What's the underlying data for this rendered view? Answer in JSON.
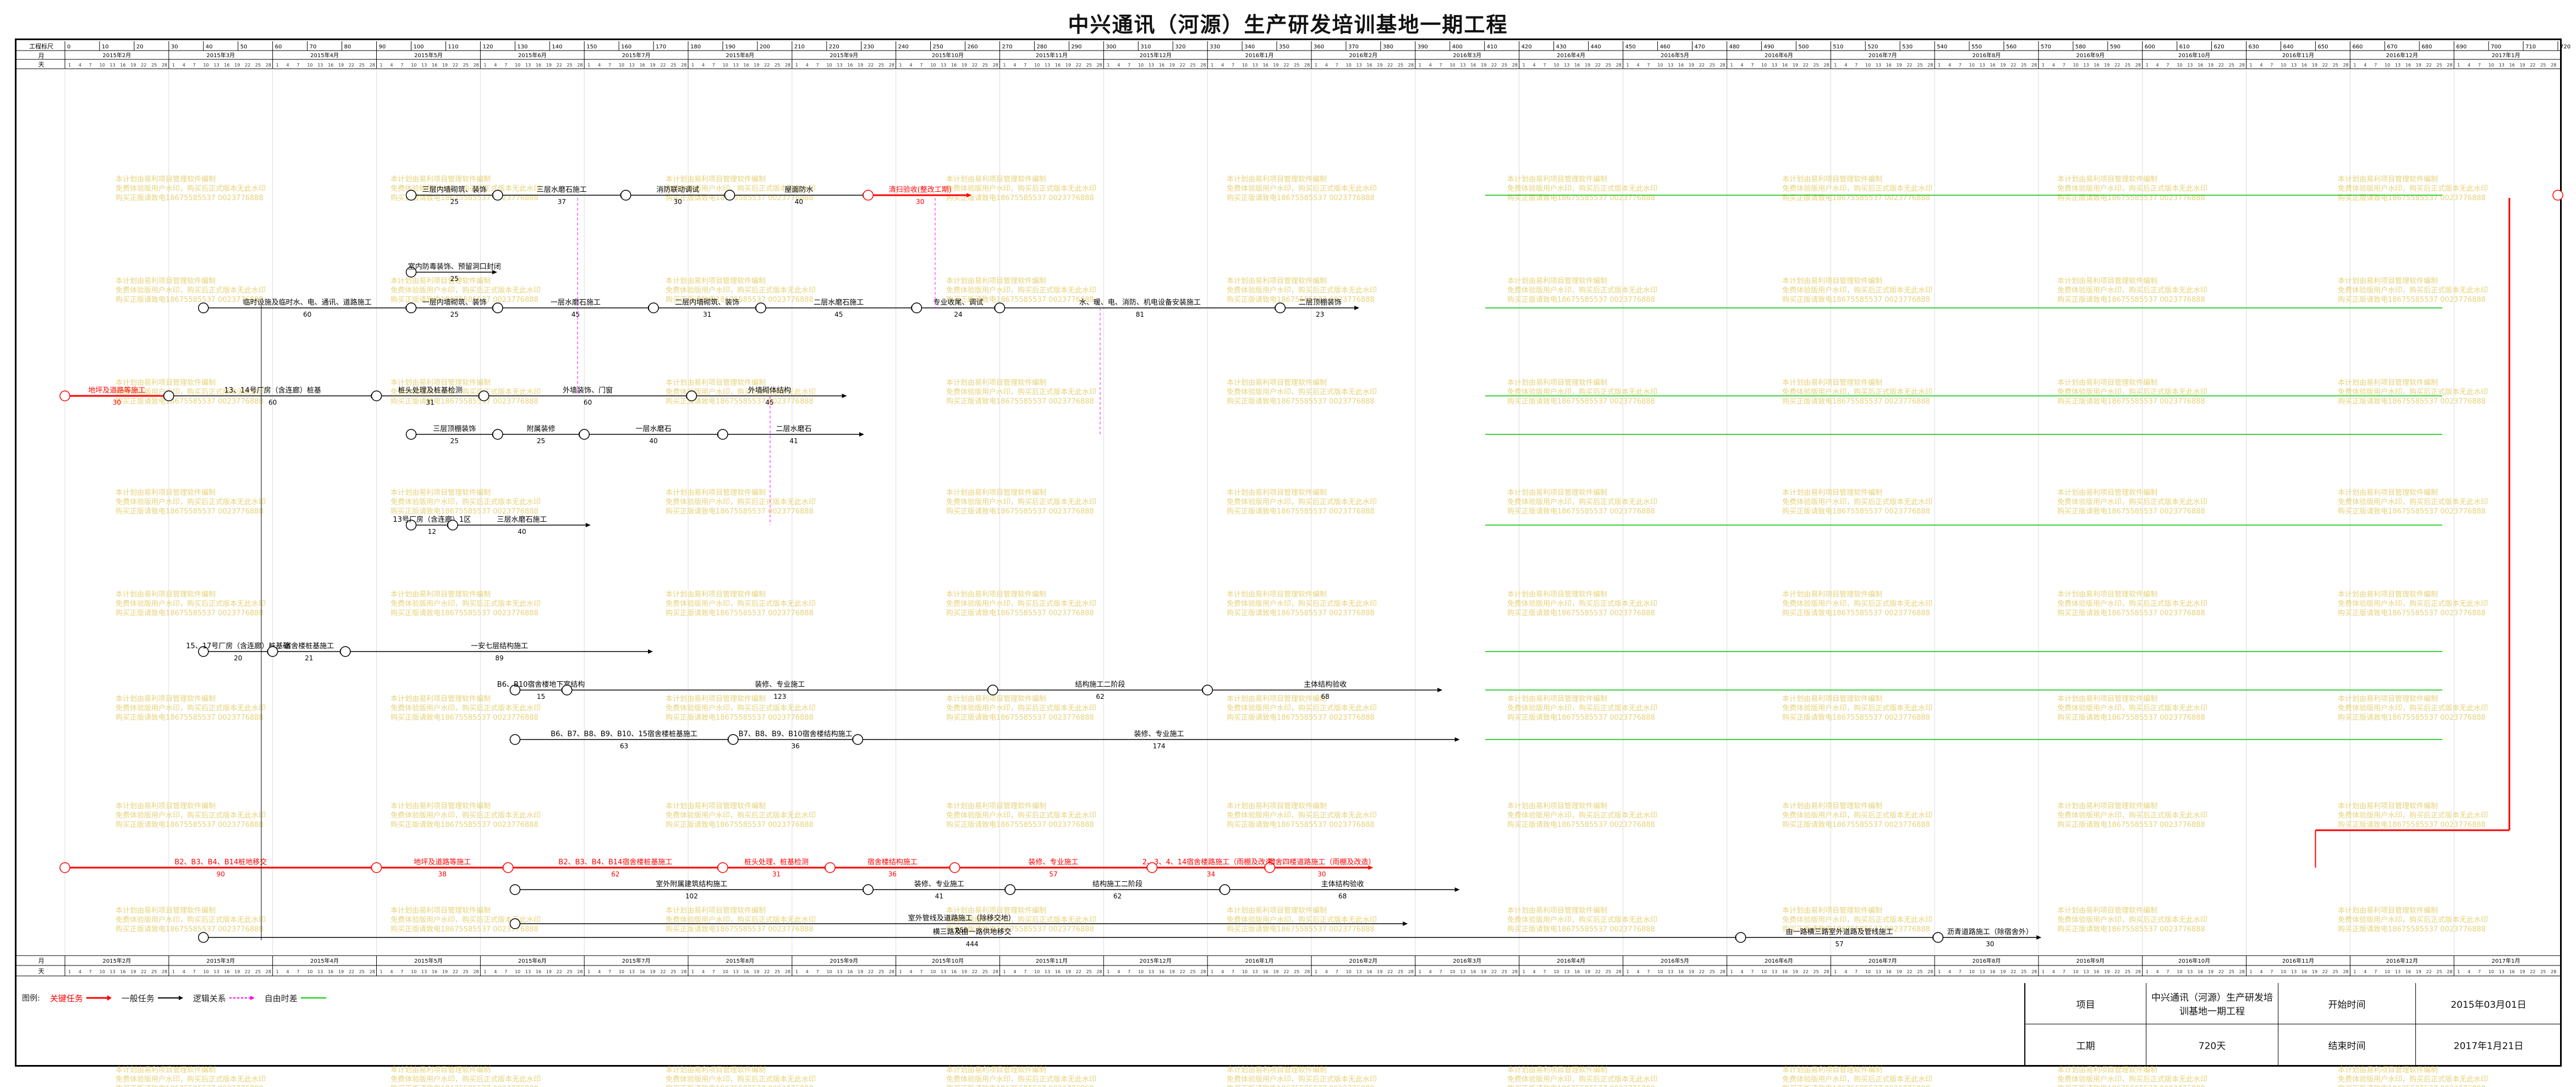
{
  "title": "中兴通讯（河源）生产研发培训基地一期工程",
  "header": {
    "row_labels": [
      "工程标尺",
      "月",
      "天"
    ],
    "bottom_row_labels": [
      "月",
      "天"
    ],
    "months": [
      "2015年2月",
      "2015年3月",
      "2015年4月",
      "2015年5月",
      "2015年6月",
      "2015年7月",
      "2015年8月",
      "2015年9月",
      "2015年10月",
      "2015年11月",
      "2015年12月",
      "2016年1月",
      "2016年2月",
      "2016年3月",
      "2016年4月",
      "2016年5月",
      "2016年6月",
      "2016年7月",
      "2016年8月",
      "2016年9月",
      "2016年10月",
      "2016年11月",
      "2016年12月",
      "2017年1月"
    ],
    "scale_ticks": [
      "0",
      "10",
      "20",
      "30",
      "40",
      "50",
      "60",
      "70",
      "80",
      "90",
      "100",
      "110",
      "120",
      "130",
      "140",
      "150",
      "160",
      "170",
      "180",
      "190",
      "200",
      "210",
      "220",
      "230",
      "240",
      "250",
      "260",
      "270",
      "280",
      "290",
      "300",
      "310",
      "320",
      "330",
      "340",
      "350",
      "360",
      "370",
      "380",
      "390",
      "400",
      "410",
      "420",
      "430",
      "440",
      "450",
      "460",
      "470",
      "480",
      "490",
      "500",
      "510",
      "520",
      "530",
      "540",
      "550",
      "560",
      "570",
      "580",
      "590",
      "600",
      "610",
      "620",
      "630",
      "640",
      "650",
      "660",
      "670",
      "680",
      "690",
      "700",
      "710",
      "720"
    ],
    "day_ticks": [
      "1",
      "4",
      "7",
      "10",
      "13",
      "16",
      "19",
      "22",
      "25",
      "28"
    ]
  },
  "colors": {
    "critical": "#ff0000",
    "normal": "#000000",
    "logic": "#000000",
    "free_float": "#00c000",
    "link": "#ff00ff",
    "watermark": "#e6d27a",
    "grid": "#dcdcdc"
  },
  "legend": {
    "label": "图例:",
    "items": [
      {
        "label": "关键任务",
        "color": "#ff0000"
      },
      {
        "label": "一般任务",
        "color": "#000000"
      },
      {
        "label": "逻辑关系",
        "color": "#000000"
      },
      {
        "label": "自由时差",
        "color": "#00c000"
      }
    ]
  },
  "project_info": {
    "project_label": "项目",
    "project_name": "中兴通讯（河源）生产研发培训基地一期工程",
    "start_label": "开始时间",
    "start_value": "2015年03月01日",
    "duration_label": "工期",
    "duration_value": "720天",
    "end_label": "结束时间",
    "end_value": "2017年1月21日"
  },
  "watermark": [
    "本计划由易利项目管理软件编制",
    "免费体验版用户水印，购买后正式版本无此水印",
    "购买正版请致电18675585537 0023776888"
  ],
  "chart_data": {
    "type": "network_timeline",
    "time_axis": {
      "unit": "天",
      "range": [
        0,
        720
      ]
    },
    "tasks": [
      {
        "label": "临时设施及临时水、电、通讯、道路施工",
        "duration": "60",
        "critical": false,
        "row": 3
      },
      {
        "label": "地坪及道路等施工",
        "duration": "30",
        "critical": true,
        "row": 4
      },
      {
        "label": "13、14号厂房（含连廊）桩基",
        "duration": "60",
        "critical": false,
        "row": 4
      },
      {
        "label": "桩头处理及桩基检测",
        "duration": "31",
        "critical": false,
        "row": 4
      },
      {
        "label": "外墙装饰、门窗",
        "duration": "60",
        "critical": false,
        "row": 4
      },
      {
        "label": "外墙砌体结构",
        "duration": "45",
        "critical": false,
        "row": 4
      },
      {
        "label": "三层内墙砌筑、装饰",
        "duration": "25",
        "critical": false,
        "row": 1
      },
      {
        "label": "三层水磨石施工",
        "duration": "37",
        "critical": false,
        "row": 1
      },
      {
        "label": "消防联动调试",
        "duration": "30",
        "critical": false,
        "row": 1
      },
      {
        "label": "屋面防水",
        "duration": "40",
        "critical": false,
        "row": 1
      },
      {
        "label": "室内防毒装饰、预留洞口封闭",
        "duration": "25",
        "critical": false,
        "row": 2
      },
      {
        "label": "一层内墙砌筑、装饰",
        "duration": "25",
        "critical": false,
        "row": 3
      },
      {
        "label": "一层水磨石施工",
        "duration": "45",
        "critical": false,
        "row": 3
      },
      {
        "label": "二层内墙砌筑、装饰",
        "duration": "31",
        "critical": false,
        "row": 3
      },
      {
        "label": "二层水磨石施工",
        "duration": "45",
        "critical": false,
        "row": 3
      },
      {
        "label": "专业收尾、调试",
        "duration": "24",
        "critical": false,
        "row": 3
      },
      {
        "label": "水、暖、电、消防、机电设备安装施工",
        "duration": "81",
        "critical": false,
        "row": 3
      },
      {
        "label": "二层顶棚装饰",
        "duration": "23",
        "critical": false,
        "row": 3
      },
      {
        "label": "三层顶棚装饰",
        "duration": "25",
        "critical": false,
        "row": 5
      },
      {
        "label": "附属装修",
        "duration": "25",
        "critical": false,
        "row": 5
      },
      {
        "label": "一层水磨石",
        "duration": "40",
        "critical": false,
        "row": 5
      },
      {
        "label": "二层水磨石",
        "duration": "41",
        "critical": false,
        "row": 5
      },
      {
        "label": "13号厂房（含连廊）1区",
        "duration": "12",
        "critical": false,
        "row": 6
      },
      {
        "label": "三层水磨石施工",
        "duration": "40",
        "critical": false,
        "row": 6
      },
      {
        "label": "15、17号厂房（含连廊）桩基础",
        "duration": "20",
        "critical": false,
        "row": 8
      },
      {
        "label": "宿舍楼桩基施工",
        "duration": "21",
        "critical": false,
        "row": 8
      },
      {
        "label": "一安七层结构施工",
        "duration": "89",
        "critical": false,
        "row": 8
      },
      {
        "label": "B6、B10宿舍楼地下室结构",
        "duration": "15",
        "critical": false,
        "row": 9
      },
      {
        "label": "装修、专业施工",
        "duration": "123",
        "critical": false,
        "row": 9
      },
      {
        "label": "结构施工二阶段",
        "duration": "62",
        "critical": false,
        "row": 9
      },
      {
        "label": "主体结构验收",
        "duration": "68",
        "critical": false,
        "row": 9
      },
      {
        "label": "B6、B7、B8、B9、B10、15宿舍楼桩基施工",
        "duration": "63",
        "critical": false,
        "row": 10
      },
      {
        "label": "B7、B8、B9、B10宿舍楼结构施工",
        "duration": "36",
        "critical": false,
        "row": 10
      },
      {
        "label": "装修、专业施工",
        "duration": "174",
        "critical": false,
        "row": 10
      },
      {
        "label": "B2、B3、B4、B14桩地移交",
        "duration": "90",
        "critical": true,
        "row": 11
      },
      {
        "label": "地坪及道路等施工",
        "duration": "38",
        "critical": true,
        "row": 11
      },
      {
        "label": "B2、B3、B4、B14宿舍楼桩基施工",
        "duration": "62",
        "critical": true,
        "row": 11
      },
      {
        "label": "桩头处理、桩基检测",
        "duration": "31",
        "critical": true,
        "row": 11
      },
      {
        "label": "宿舍楼结构施工",
        "duration": "36",
        "critical": true,
        "row": 11
      },
      {
        "label": "装修、专业施工",
        "duration": "57",
        "critical": true,
        "row": 11
      },
      {
        "label": "2、3、4、14宿舍楼路施工（雨棚及改造）",
        "duration": "34",
        "critical": true,
        "row": 11
      },
      {
        "label": "宿舍四楼道路施工（雨棚及改造）",
        "duration": "30",
        "critical": true,
        "row": 11
      },
      {
        "label": "清扫验收(整改工期)",
        "duration": "30",
        "critical": true,
        "row": 1
      },
      {
        "label": "室外附属建筑结构施工",
        "duration": "102",
        "critical": false,
        "row": 12
      },
      {
        "label": "装修、专业施工",
        "duration": "41",
        "critical": false,
        "row": 12
      },
      {
        "label": "结构施工二阶段",
        "duration": "62",
        "critical": false,
        "row": 12
      },
      {
        "label": "主体结构验收",
        "duration": "68",
        "critical": false,
        "row": 12
      },
      {
        "label": "室外管线及道路施工（除移交地）",
        "duration": "258",
        "critical": false,
        "row": 13
      },
      {
        "label": "横三路及由一路供地移交",
        "duration": "444",
        "critical": false,
        "row": 14
      },
      {
        "label": "由一路横三路室外道路及管线施工",
        "duration": "57",
        "critical": false,
        "row": 14
      },
      {
        "label": "沥青道路施工（除宿舍外）",
        "duration": "30",
        "critical": false,
        "row": 14
      }
    ]
  }
}
